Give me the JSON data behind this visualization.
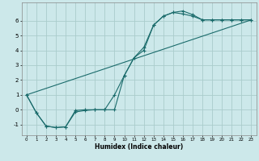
{
  "title": "",
  "xlabel": "Humidex (Indice chaleur)",
  "bg_color": "#cce8ea",
  "grid_color": "#aacccc",
  "line_color": "#1a6b6b",
  "xlim": [
    -0.5,
    23.5
  ],
  "ylim": [
    -1.7,
    7.2
  ],
  "xticks": [
    0,
    1,
    2,
    3,
    4,
    5,
    6,
    7,
    8,
    9,
    10,
    11,
    12,
    13,
    14,
    15,
    16,
    17,
    18,
    19,
    20,
    21,
    22,
    23
  ],
  "yticks": [
    -1,
    0,
    1,
    2,
    3,
    4,
    5,
    6
  ],
  "line1_x": [
    0,
    1,
    2,
    3,
    4,
    5,
    6,
    7,
    8,
    9,
    10,
    11,
    12,
    13,
    14,
    15,
    16,
    17,
    18,
    19,
    20,
    21,
    22,
    23
  ],
  "line1_y": [
    1.0,
    -0.2,
    -1.1,
    -1.2,
    -1.15,
    -0.15,
    -0.05,
    0.0,
    0.0,
    1.0,
    2.3,
    3.5,
    4.0,
    5.7,
    6.3,
    6.55,
    6.45,
    6.3,
    6.05,
    6.05,
    6.05,
    6.05,
    6.05,
    6.05
  ],
  "line2_x": [
    0,
    1,
    2,
    3,
    4,
    5,
    6,
    7,
    8,
    9,
    10,
    11,
    12,
    13,
    14,
    15,
    16,
    17,
    18,
    19,
    20,
    21,
    22,
    23
  ],
  "line2_y": [
    1.0,
    -0.2,
    -1.1,
    -1.2,
    -1.15,
    -0.05,
    0.0,
    0.0,
    0.0,
    0.0,
    2.3,
    3.5,
    4.2,
    5.7,
    6.3,
    6.55,
    6.65,
    6.4,
    6.05,
    6.05,
    6.05,
    6.05,
    6.05,
    6.05
  ],
  "line3_x": [
    0,
    23
  ],
  "line3_y": [
    1.0,
    6.05
  ]
}
